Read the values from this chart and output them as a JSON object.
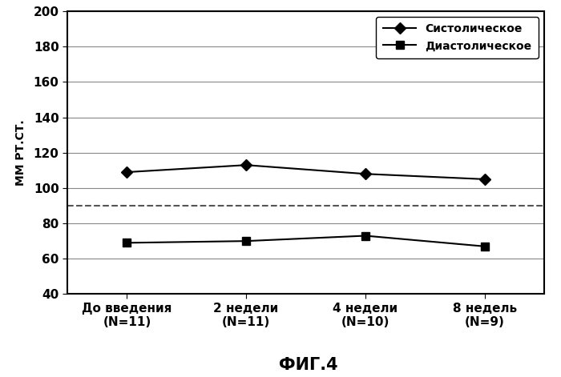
{
  "x_positions": [
    0,
    1,
    2,
    3
  ],
  "x_labels": [
    "До введения\n(N=11)",
    "2 недели\n(N=11)",
    "4 недели\n(N=10)",
    "8 недель\n(N=9)"
  ],
  "systolic": [
    109,
    113,
    108,
    105
  ],
  "diastolic": [
    69,
    70,
    73,
    67
  ],
  "diastolic_ref_line": 90,
  "systolic_label": "Систолическое",
  "diastolic_label": "Диастолическое",
  "ylabel": "ММ РТ.СТ.",
  "fig_label": "ФИГ.4",
  "ylim": [
    40,
    200
  ],
  "yticks": [
    40,
    60,
    80,
    100,
    120,
    140,
    160,
    180,
    200
  ],
  "line_color": "#000000",
  "ref_line_color": "#555555",
  "background_color": "#ffffff",
  "tick_fontsize": 11,
  "ylabel_fontsize": 10,
  "fig_label_fontsize": 15,
  "legend_fontsize": 10
}
